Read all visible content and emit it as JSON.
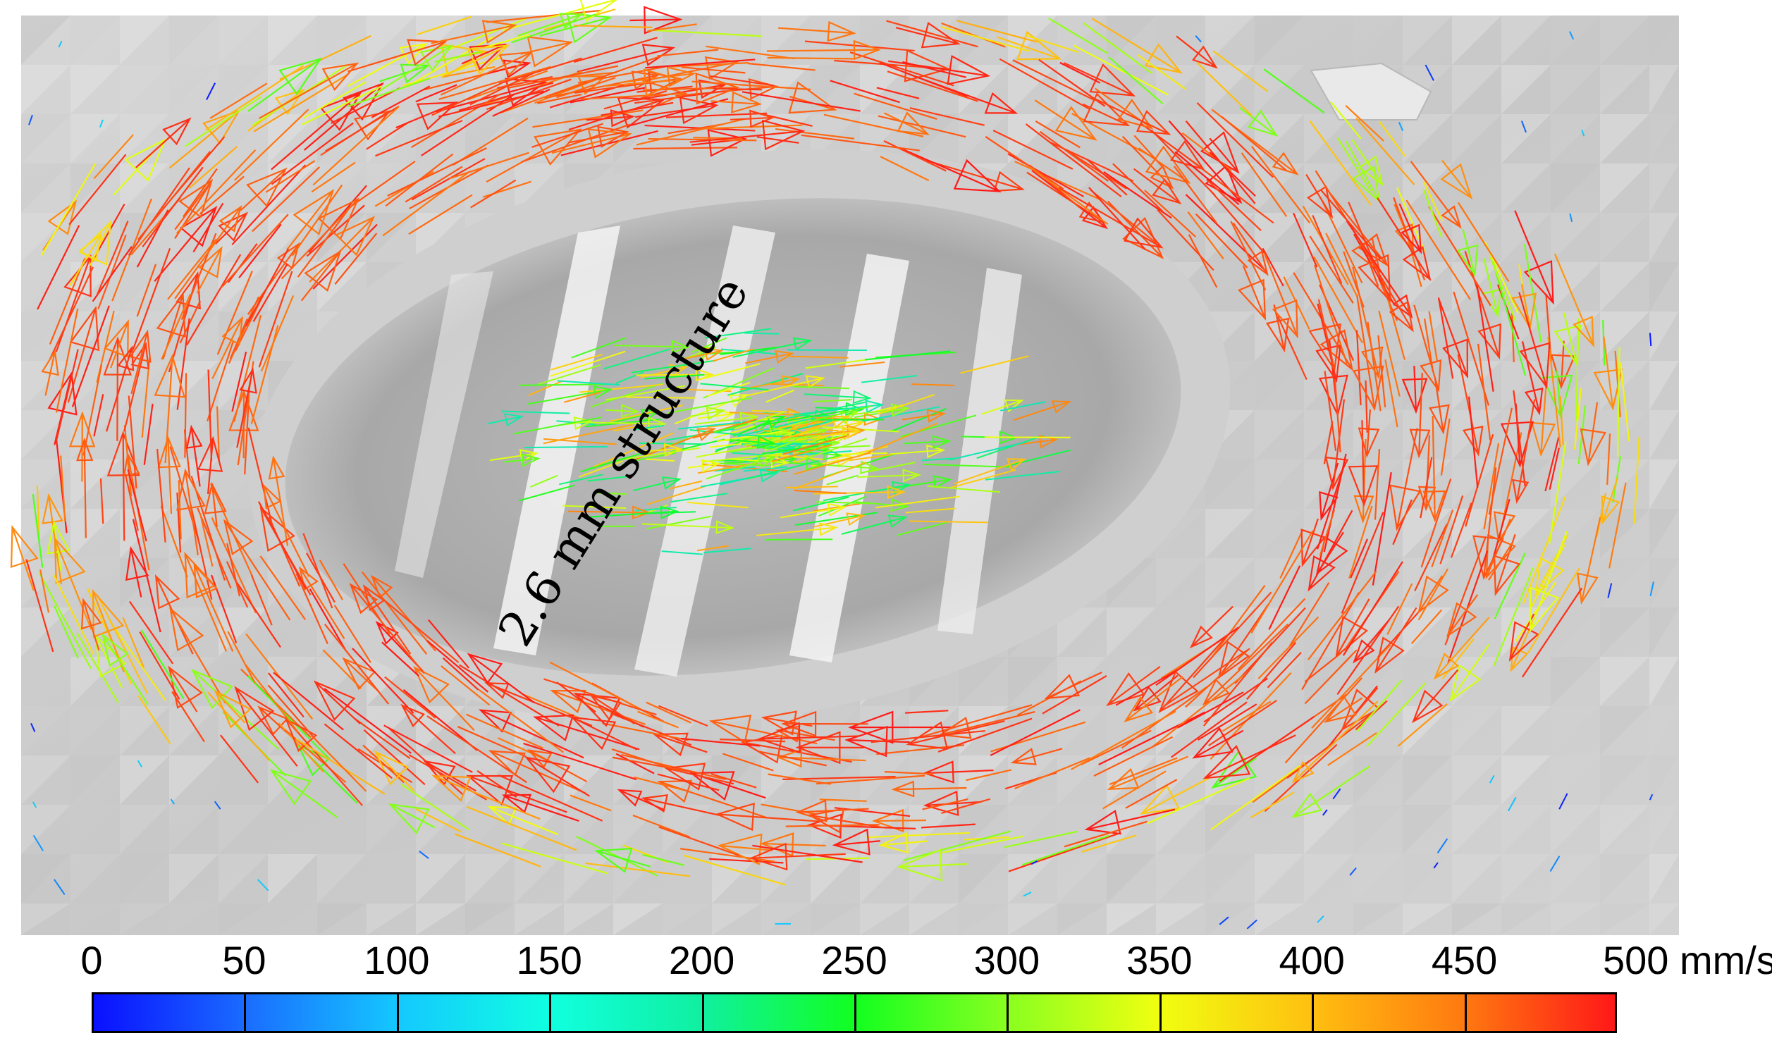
{
  "figure": {
    "annotation": "2.6 mm structure",
    "colorbar": {
      "ticks": [
        "0",
        "50",
        "100",
        "150",
        "200",
        "250",
        "300",
        "350",
        "400",
        "450",
        "500"
      ],
      "unit": "mm/s",
      "min": 0,
      "max": 500,
      "colors": {
        "low": "#0a10ff",
        "mid": "#12ff20",
        "high": "#ff1818"
      }
    }
  }
}
